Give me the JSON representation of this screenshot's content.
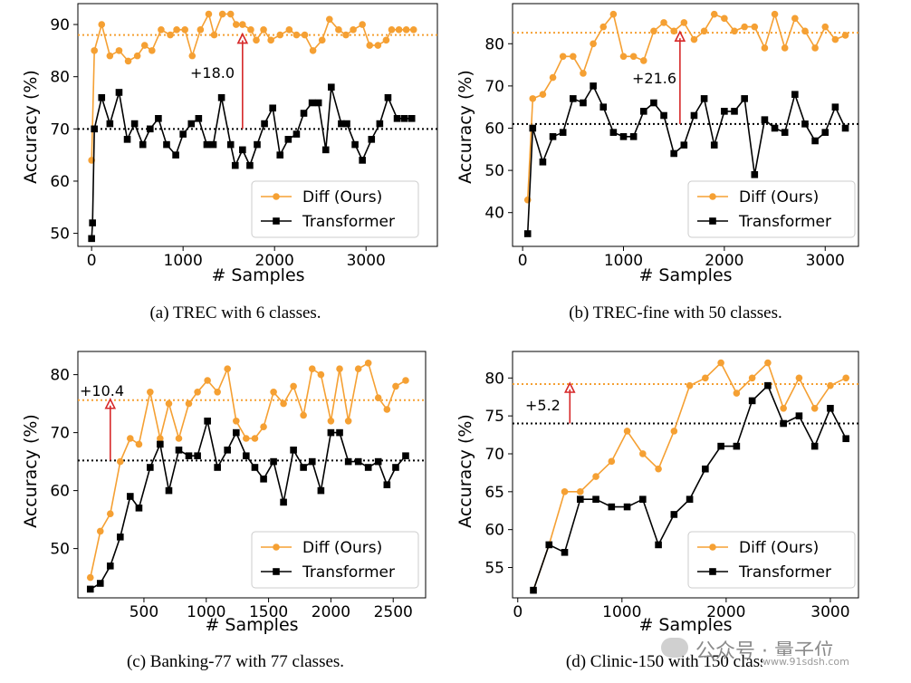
{
  "colors": {
    "diff": "#f5a033",
    "transformer": "#000000",
    "arrow": "#d62728"
  },
  "watermark": {
    "text": "公众号 · 量子位",
    "url": "www.91sdsh.com"
  },
  "chart_data": [
    {
      "type": "line",
      "caption": "(a) TREC with 6 classes.",
      "xlabel": "# Samples",
      "ylabel": "Accuracy (%)",
      "xlim": [
        -150,
        3780
      ],
      "ylim": [
        47.5,
        94
      ],
      "xticks": [
        0,
        1000,
        2000,
        3000
      ],
      "yticks": [
        50,
        60,
        70,
        80,
        90
      ],
      "legend": "lower-right",
      "annotation": {
        "label": "+18.0",
        "x": 1650,
        "y_from": 70,
        "y_to": 88
      },
      "hlines": {
        "diff": 88,
        "transformer": 70
      },
      "series": [
        {
          "name": "Diff (Ours)",
          "x": [
            0,
            30,
            110,
            200,
            300,
            400,
            500,
            580,
            660,
            760,
            860,
            930,
            1020,
            1100,
            1190,
            1280,
            1340,
            1430,
            1520,
            1580,
            1650,
            1740,
            1800,
            1880,
            1960,
            2060,
            2160,
            2240,
            2330,
            2420,
            2520,
            2600,
            2700,
            2780,
            2860,
            2960,
            3040,
            3130,
            3220,
            3280,
            3360,
            3440,
            3520
          ],
          "y": [
            64,
            85,
            90,
            84,
            85,
            83,
            84,
            86,
            85,
            89,
            88,
            89,
            89,
            84,
            89,
            92,
            88,
            92,
            92,
            90,
            90,
            89,
            87,
            89,
            87,
            88,
            89,
            88,
            88,
            85,
            87,
            91,
            89,
            88,
            89,
            90,
            86,
            86,
            87,
            89,
            89,
            89,
            89
          ]
        },
        {
          "name": "Transformer",
          "x": [
            0,
            10,
            30,
            110,
            200,
            300,
            390,
            470,
            560,
            640,
            730,
            820,
            920,
            1000,
            1090,
            1170,
            1260,
            1330,
            1420,
            1520,
            1570,
            1650,
            1730,
            1810,
            1890,
            1980,
            2060,
            2150,
            2240,
            2320,
            2410,
            2480,
            2560,
            2620,
            2730,
            2790,
            2880,
            2960,
            3060,
            3150,
            3240,
            3340,
            3420,
            3500
          ],
          "y": [
            49,
            52,
            70,
            76,
            71,
            77,
            68,
            71,
            67,
            70,
            72,
            67,
            65,
            69,
            71,
            72,
            67,
            67,
            76,
            67,
            63,
            66,
            63,
            67,
            71,
            74,
            65,
            68,
            69,
            73,
            75,
            75,
            66,
            78,
            71,
            71,
            67,
            64,
            68,
            71,
            76,
            72,
            72,
            72
          ]
        }
      ]
    },
    {
      "type": "line",
      "caption": "(b) TREC-fine with 50 classes.",
      "xlabel": "# Samples",
      "ylabel": "Accuracy (%)",
      "xlim": [
        -100,
        3330
      ],
      "ylim": [
        32,
        89.5
      ],
      "xticks": [
        0,
        1000,
        2000,
        3000
      ],
      "yticks": [
        40,
        50,
        60,
        70,
        80
      ],
      "legend": "lower-right",
      "annotation": {
        "label": "+21.6",
        "x": 1560,
        "y_from": 61,
        "y_to": 82.6
      },
      "hlines": {
        "diff": 82.6,
        "transformer": 61
      },
      "series": [
        {
          "name": "Diff (Ours)",
          "x": [
            50,
            100,
            200,
            300,
            400,
            500,
            600,
            700,
            800,
            900,
            1000,
            1100,
            1200,
            1300,
            1400,
            1500,
            1600,
            1700,
            1800,
            1900,
            2000,
            2100,
            2200,
            2300,
            2400,
            2500,
            2600,
            2700,
            2800,
            2900,
            3000,
            3100,
            3200
          ],
          "y": [
            43,
            67,
            68,
            72,
            77,
            77,
            73,
            80,
            84,
            87,
            77,
            77,
            76,
            83,
            85,
            83,
            85,
            81,
            83,
            87,
            86,
            83,
            84,
            84,
            79,
            87,
            79,
            86,
            83,
            79,
            84,
            81,
            82
          ]
        },
        {
          "name": "Transformer",
          "x": [
            50,
            100,
            200,
            300,
            400,
            500,
            600,
            700,
            800,
            900,
            1000,
            1100,
            1200,
            1300,
            1400,
            1500,
            1600,
            1700,
            1800,
            1900,
            2000,
            2100,
            2200,
            2300,
            2400,
            2500,
            2600,
            2700,
            2800,
            2900,
            3000,
            3100,
            3200
          ],
          "y": [
            35,
            60,
            52,
            58,
            59,
            67,
            66,
            70,
            65,
            59,
            58,
            58,
            64,
            66,
            63,
            54,
            56,
            63,
            67,
            56,
            64,
            64,
            67,
            49,
            62,
            60,
            59,
            68,
            61,
            57,
            59,
            65,
            60
          ]
        }
      ]
    },
    {
      "type": "line",
      "caption": "(c) Banking-77 with 77 classes.",
      "xlabel": "# Samples",
      "ylabel": "Accuracy (%)",
      "xlim": [
        -30,
        2760
      ],
      "ylim": [
        41.5,
        84
      ],
      "xticks": [
        500,
        1000,
        1500,
        2000,
        2500
      ],
      "yticks": [
        50,
        60,
        70,
        80
      ],
      "legend": "lower-right",
      "annotation": {
        "label": "+10.4",
        "x": 230,
        "y_from": 65.2,
        "y_to": 75.6
      },
      "hlines": {
        "diff": 75.6,
        "transformer": 65.2
      },
      "series": [
        {
          "name": "Diff (Ours)",
          "x": [
            70,
            150,
            230,
            310,
            390,
            460,
            550,
            630,
            700,
            780,
            860,
            930,
            1010,
            1090,
            1170,
            1240,
            1320,
            1390,
            1460,
            1540,
            1620,
            1700,
            1780,
            1850,
            1920,
            2000,
            2070,
            2140,
            2220,
            2300,
            2380,
            2450,
            2520,
            2600
          ],
          "y": [
            45,
            53,
            56,
            65,
            69,
            68,
            77,
            69,
            75,
            69,
            75,
            77,
            79,
            77,
            81,
            72,
            69,
            69,
            71,
            77,
            75,
            78,
            73,
            81,
            80,
            72,
            81,
            72,
            81,
            82,
            76,
            74,
            78,
            79
          ]
        },
        {
          "name": "Transformer",
          "x": [
            70,
            150,
            230,
            310,
            390,
            460,
            550,
            630,
            700,
            780,
            860,
            930,
            1010,
            1090,
            1170,
            1240,
            1320,
            1390,
            1460,
            1540,
            1620,
            1700,
            1780,
            1850,
            1920,
            2000,
            2070,
            2140,
            2220,
            2300,
            2380,
            2450,
            2520,
            2600
          ],
          "y": [
            43,
            44,
            47,
            52,
            59,
            57,
            64,
            68,
            60,
            67,
            66,
            66,
            72,
            64,
            67,
            70,
            66,
            64,
            62,
            65,
            58,
            67,
            64,
            65,
            60,
            70,
            70,
            65,
            65,
            64,
            65,
            61,
            64,
            66
          ]
        }
      ]
    },
    {
      "type": "line",
      "caption": "(d) Clinic-150 with 150 classes.",
      "xlabel": "# Samples",
      "ylabel": "Accuracy (%)",
      "xlim": [
        -50,
        3270
      ],
      "ylim": [
        51,
        83.5
      ],
      "xticks": [
        0,
        1000,
        2000,
        3000
      ],
      "yticks": [
        55,
        60,
        65,
        70,
        75,
        80
      ],
      "legend": "lower-right",
      "annotation": {
        "label": "+5.2",
        "x": 500,
        "y_from": 74,
        "y_to": 79.2
      },
      "hlines": {
        "diff": 79.2,
        "transformer": 74
      },
      "series": [
        {
          "name": "Diff (Ours)",
          "x": [
            150,
            300,
            450,
            600,
            750,
            900,
            1050,
            1200,
            1350,
            1500,
            1650,
            1800,
            1950,
            2100,
            2250,
            2400,
            2550,
            2700,
            2850,
            3000,
            3150
          ],
          "y": [
            52,
            58,
            65,
            65,
            67,
            69,
            73,
            70,
            68,
            73,
            79,
            80,
            82,
            78,
            80,
            82,
            76,
            80,
            76,
            79,
            80
          ]
        },
        {
          "name": "Transformer",
          "x": [
            150,
            300,
            450,
            600,
            750,
            900,
            1050,
            1200,
            1350,
            1500,
            1650,
            1800,
            1950,
            2100,
            2250,
            2400,
            2550,
            2700,
            2850,
            3000,
            3150
          ],
          "y": [
            52,
            58,
            57,
            64,
            64,
            63,
            63,
            64,
            58,
            62,
            64,
            68,
            71,
            71,
            77,
            79,
            74,
            75,
            71,
            76,
            72
          ]
        }
      ]
    }
  ]
}
